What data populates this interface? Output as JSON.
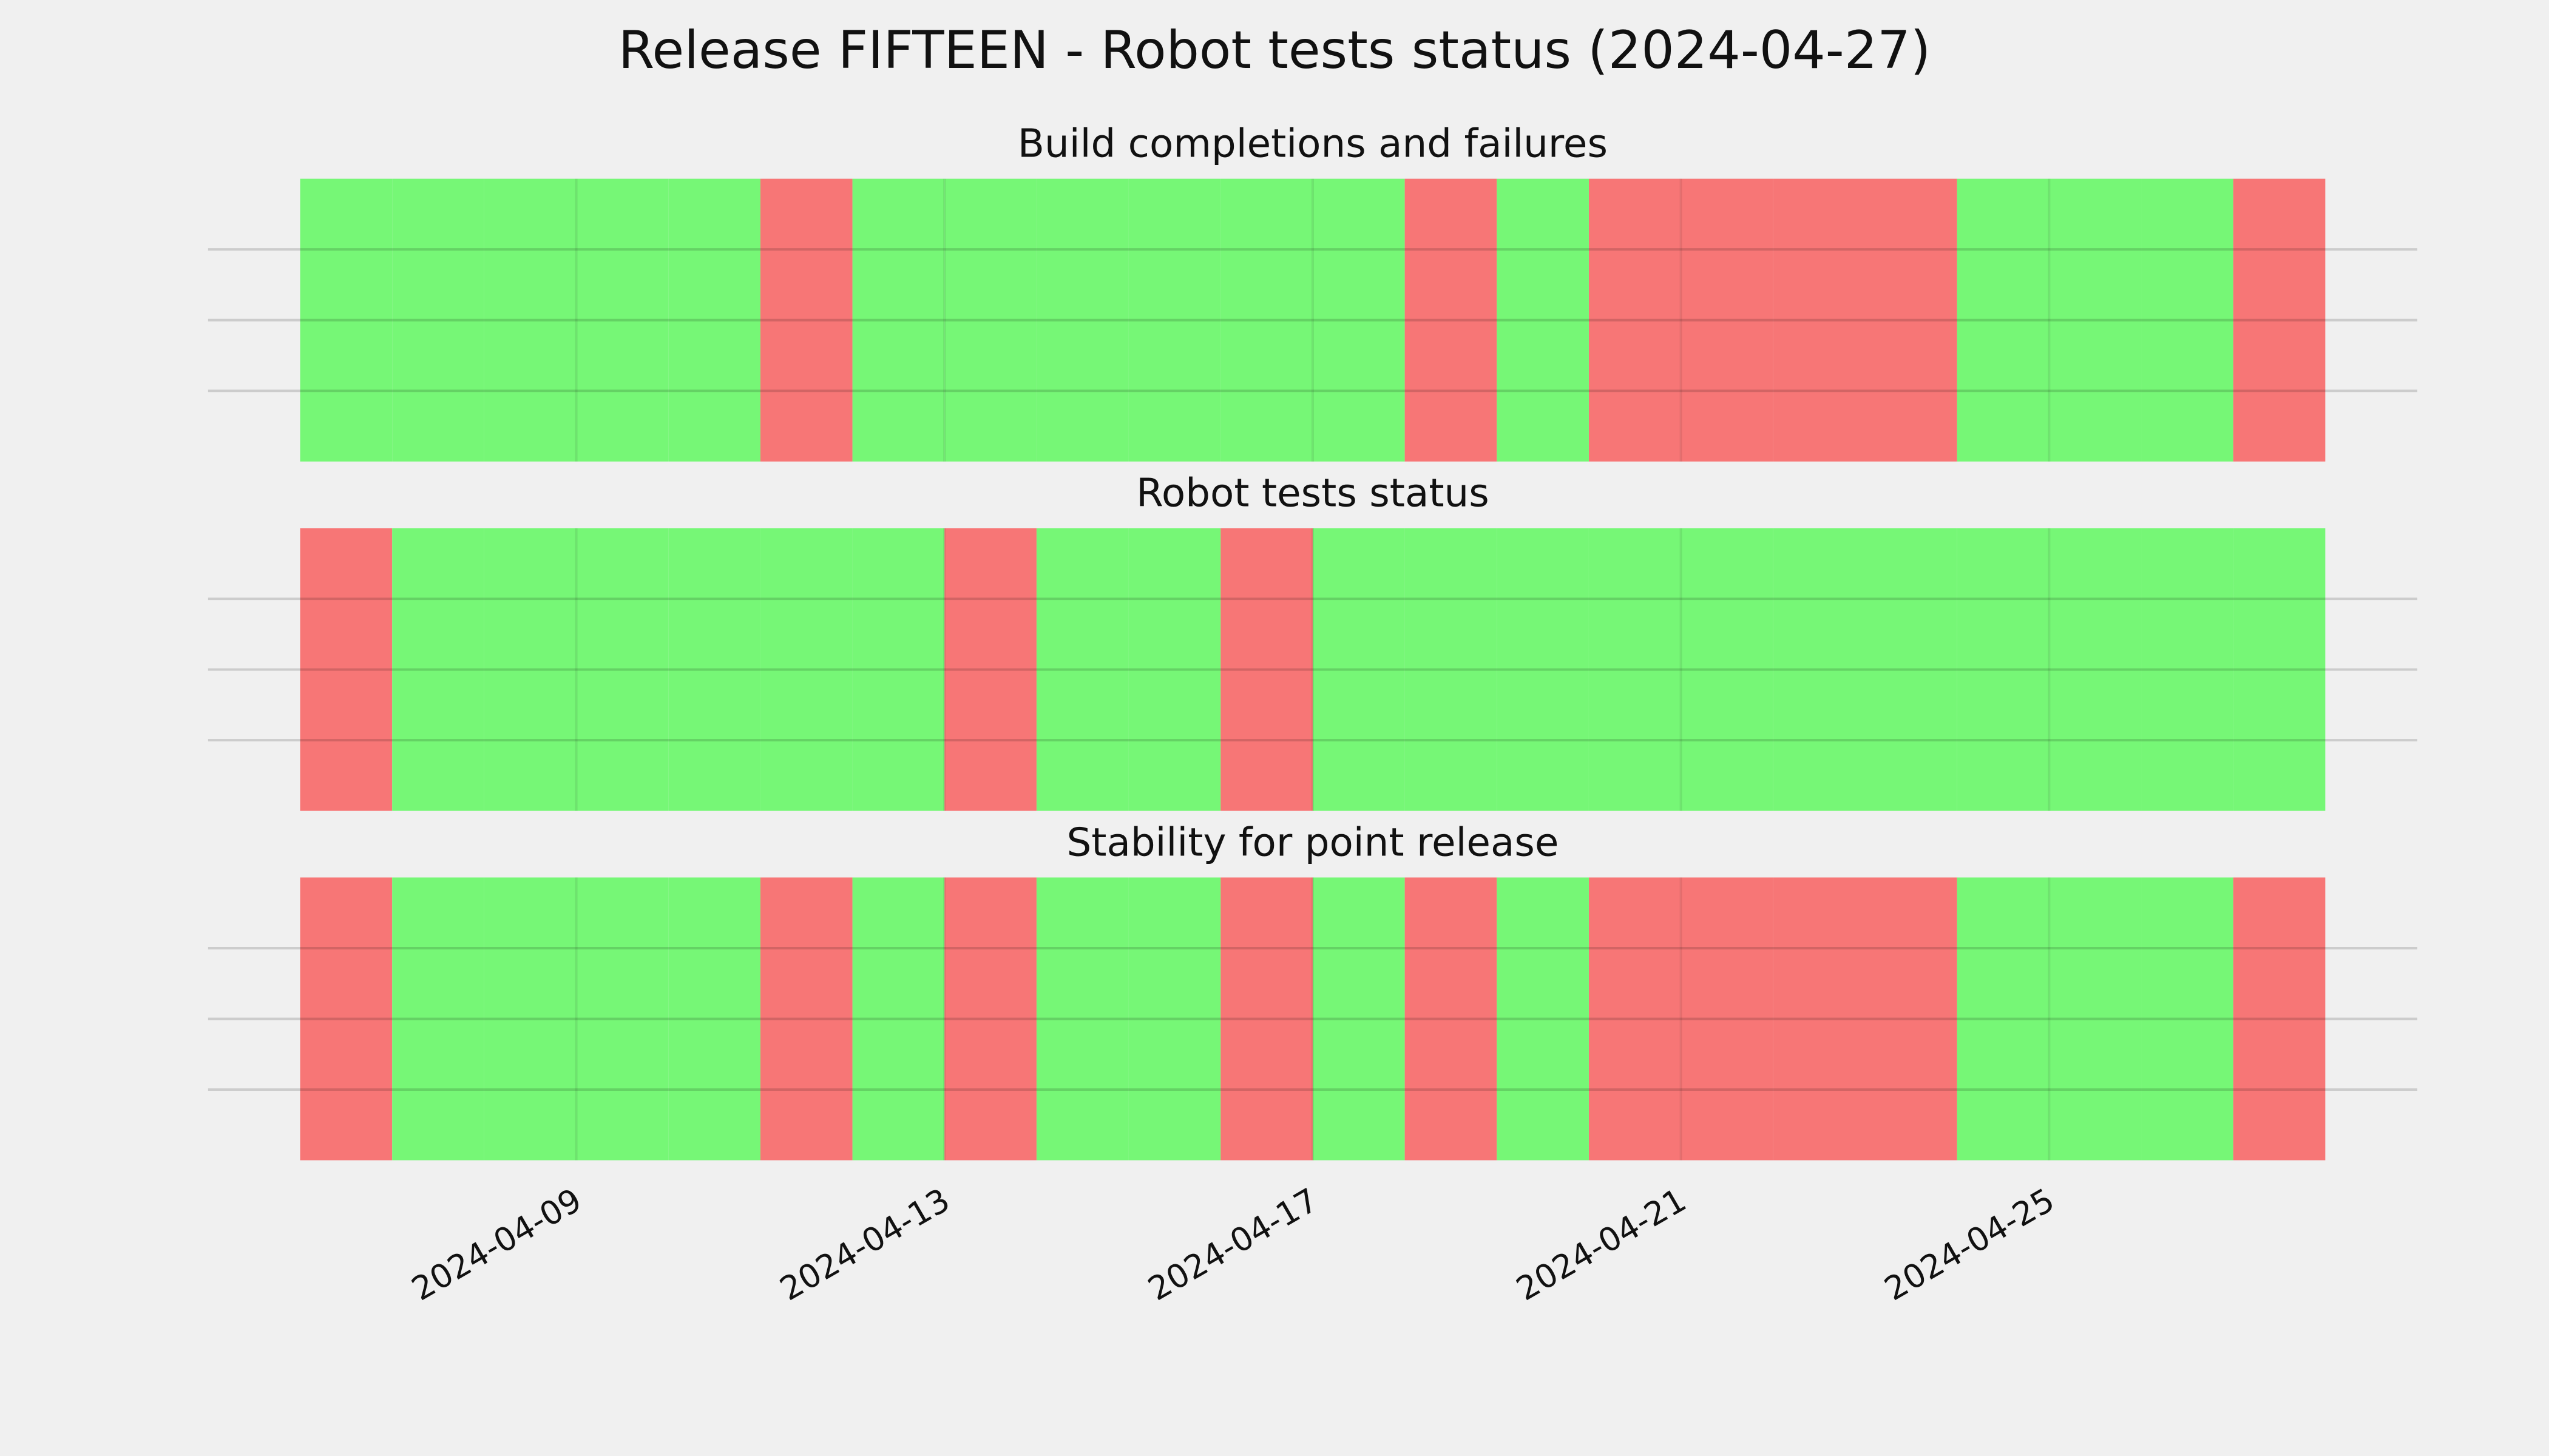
{
  "title": "Release FIFTEEN - Robot tests status (2024-04-27)",
  "chart_data": [
    {
      "type": "timeline",
      "title": "Build completions and failures",
      "x": [
        "2024-04-06",
        "2024-04-07",
        "2024-04-08",
        "2024-04-09",
        "2024-04-10",
        "2024-04-11",
        "2024-04-12",
        "2024-04-13",
        "2024-04-14",
        "2024-04-15",
        "2024-04-16",
        "2024-04-17",
        "2024-04-18",
        "2024-04-19",
        "2024-04-20",
        "2024-04-21",
        "2024-04-22",
        "2024-04-23",
        "2024-04-24",
        "2024-04-25",
        "2024-04-26",
        "2024-04-27"
      ],
      "values": [
        1,
        1,
        1,
        1,
        1,
        0,
        1,
        1,
        1,
        1,
        1,
        1,
        0,
        1,
        0,
        0,
        0,
        0,
        1,
        1,
        1,
        0
      ],
      "status_colors": [
        "#f77676",
        "#76f776"
      ],
      "xlim": [
        "2024-04-05",
        "2024-04-29"
      ],
      "xticks": [
        "2024-04-09",
        "2024-04-13",
        "2024-04-17",
        "2024-04-21",
        "2024-04-25"
      ],
      "ylim": [
        0,
        1
      ],
      "yticks": [
        0.25,
        0.5,
        0.75
      ],
      "grid": true
    },
    {
      "type": "timeline",
      "title": "Robot tests status",
      "x": [
        "2024-04-06",
        "2024-04-07",
        "2024-04-08",
        "2024-04-09",
        "2024-04-10",
        "2024-04-11",
        "2024-04-12",
        "2024-04-13",
        "2024-04-14",
        "2024-04-15",
        "2024-04-16",
        "2024-04-17",
        "2024-04-18",
        "2024-04-19",
        "2024-04-20",
        "2024-04-21",
        "2024-04-22",
        "2024-04-23",
        "2024-04-24",
        "2024-04-25",
        "2024-04-26",
        "2024-04-27"
      ],
      "values": [
        0,
        1,
        1,
        1,
        1,
        1,
        1,
        0,
        1,
        1,
        0,
        1,
        1,
        1,
        1,
        1,
        1,
        1,
        1,
        1,
        1,
        1
      ],
      "status_colors": [
        "#f77676",
        "#76f776"
      ],
      "xlim": [
        "2024-04-05",
        "2024-04-29"
      ],
      "xticks": [
        "2024-04-09",
        "2024-04-13",
        "2024-04-17",
        "2024-04-21",
        "2024-04-25"
      ],
      "ylim": [
        0,
        1
      ],
      "yticks": [
        0.25,
        0.5,
        0.75
      ],
      "grid": true
    },
    {
      "type": "timeline",
      "title": "Stability for point release",
      "x": [
        "2024-04-06",
        "2024-04-07",
        "2024-04-08",
        "2024-04-09",
        "2024-04-10",
        "2024-04-11",
        "2024-04-12",
        "2024-04-13",
        "2024-04-14",
        "2024-04-15",
        "2024-04-16",
        "2024-04-17",
        "2024-04-18",
        "2024-04-19",
        "2024-04-20",
        "2024-04-21",
        "2024-04-22",
        "2024-04-23",
        "2024-04-24",
        "2024-04-25",
        "2024-04-26",
        "2024-04-27"
      ],
      "values": [
        0,
        1,
        1,
        1,
        1,
        0,
        1,
        0,
        1,
        1,
        0,
        1,
        0,
        1,
        0,
        0,
        0,
        0,
        1,
        1,
        1,
        0
      ],
      "status_colors": [
        "#f77676",
        "#76f776"
      ],
      "xlim": [
        "2024-04-05",
        "2024-04-29"
      ],
      "xticks": [
        "2024-04-09",
        "2024-04-13",
        "2024-04-17",
        "2024-04-21",
        "2024-04-25"
      ],
      "ylim": [
        0,
        1
      ],
      "yticks": [
        0.25,
        0.5,
        0.75
      ],
      "grid": true
    }
  ]
}
